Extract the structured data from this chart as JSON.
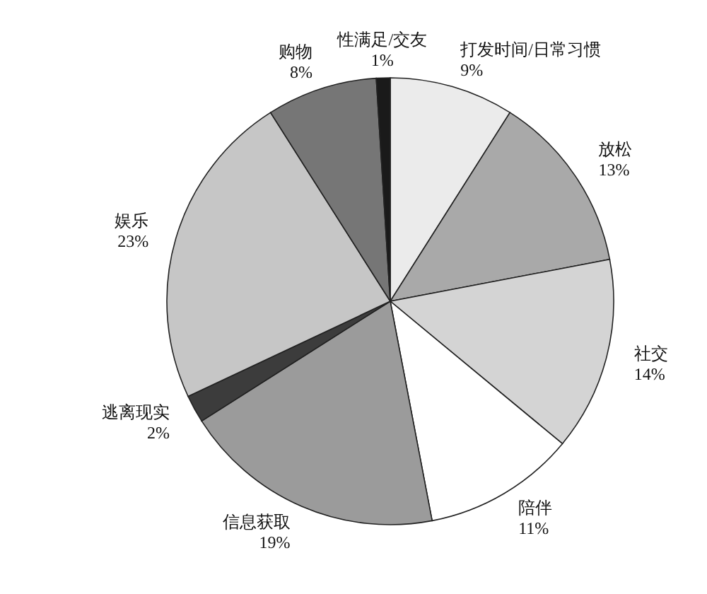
{
  "chart_data": {
    "type": "pie",
    "categories": [
      "打发时间/日常习惯",
      "放松",
      "社交",
      "陪伴",
      "信息获取",
      "逃离现实",
      "娱乐",
      "购物",
      "性满足/交友"
    ],
    "values": [
      9,
      13,
      14,
      11,
      19,
      2,
      23,
      8,
      1
    ],
    "value_labels": [
      "9%",
      "13%",
      "14%",
      "11%",
      "19%",
      "2%",
      "23%",
      "8%",
      "1%"
    ],
    "colors": [
      "#ebebeb",
      "#a9a9a9",
      "#d4d4d4",
      "#ffffff",
      "#9b9b9b",
      "#3c3c3c",
      "#c6c6c6",
      "#767676",
      "#1a1a1a"
    ]
  }
}
